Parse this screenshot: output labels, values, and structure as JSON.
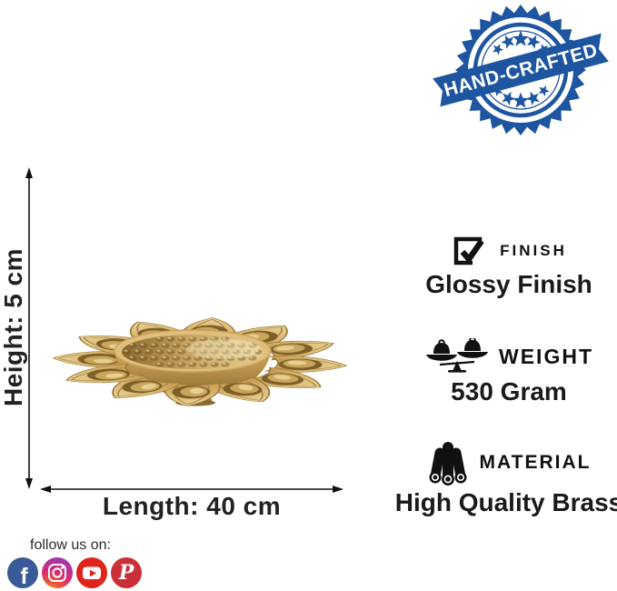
{
  "badge": {
    "label": "HAND-CRAFTED"
  },
  "dimensions": {
    "height": "Height: 5 cm",
    "length": "Length: 40 cm"
  },
  "specs": {
    "finish": {
      "icon": "checkbox-check-icon",
      "label": "FINISH",
      "value": "Glossy Finish"
    },
    "weight": {
      "icon": "balance-scale-icon",
      "label": "WEIGHT",
      "value": "530 Gram"
    },
    "material": {
      "icon": "metal-rods-icon",
      "label": "MATERIAL",
      "value": "High Quality Brass"
    }
  },
  "footer": {
    "follow_label": "follow us on:",
    "social": {
      "facebook": "Facebook",
      "instagram": "Instagram",
      "youtube": "YouTube",
      "pinterest": "Pinterest"
    }
  },
  "colors": {
    "badge_blue": "#1e55a0",
    "brass_light": "#e3c47e",
    "brass_mid": "#c49a55",
    "brass_dark": "#8a672c",
    "facebook_blue": "#3a5a97",
    "youtube_red": "#e0231b",
    "pinterest_red": "#cb3038",
    "instagram_purple": "#9a38b5",
    "instagram_pink": "#d62976",
    "instagram_orange": "#f0592e",
    "text_dark": "#1c1c1c"
  }
}
